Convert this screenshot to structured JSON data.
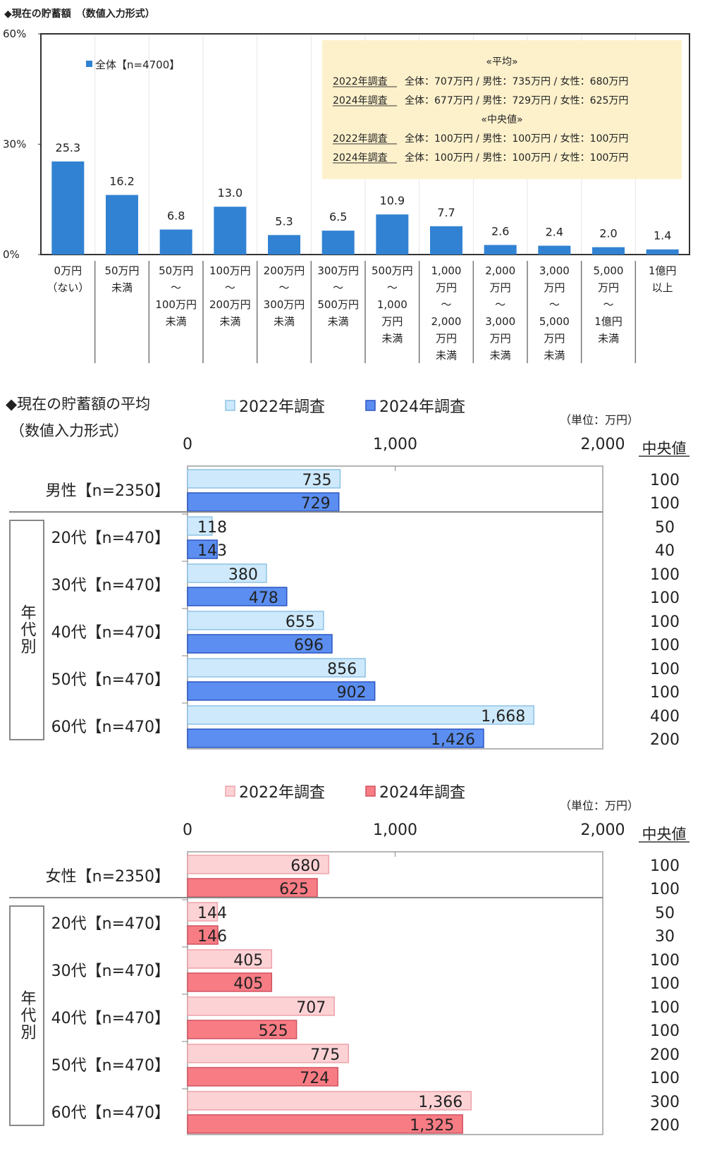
{
  "chart_data": [
    {
      "type": "bar",
      "title": "◆現在の貯蓄額　（数値入力形式）",
      "legend": "全体【n=4700】",
      "legend_position": "top-left",
      "yticks": [
        "60%",
        "30%",
        "0%"
      ],
      "ylim": [
        0,
        60
      ],
      "color": "#3182d2",
      "categories": [
        [
          "0万円",
          "（ない）"
        ],
        [
          "50万円",
          "未満"
        ],
        [
          "50万円",
          "～",
          "100万円",
          "未満"
        ],
        [
          "100万円",
          "～",
          "200万円",
          "未満"
        ],
        [
          "200万円",
          "～",
          "300万円",
          "未満"
        ],
        [
          "300万円",
          "～",
          "500万円",
          "未満"
        ],
        [
          "500万円",
          "～",
          "1,000",
          "万円",
          "未満"
        ],
        [
          "1,000",
          "万円",
          "～",
          "2,000",
          "万円",
          "未満"
        ],
        [
          "2,000",
          "万円",
          "～",
          "3,000",
          "万円",
          "未満"
        ],
        [
          "3,000",
          "万円",
          "～",
          "5,000",
          "万円",
          "未満"
        ],
        [
          "5,000",
          "万円",
          "～",
          "1億円",
          "未満"
        ],
        [
          "1億円",
          "以上"
        ]
      ],
      "values": [
        25.3,
        16.2,
        6.8,
        13.0,
        5.3,
        6.5,
        10.9,
        7.7,
        2.6,
        2.4,
        2.0,
        1.4
      ],
      "info_box": {
        "avg_heading": "«平均»",
        "avg_rows": [
          {
            "year": "2022年調査",
            "text": "全体：707万円 / 男性：735万円 / 女性：680万円"
          },
          {
            "year": "2024年調査",
            "text": "全体：677万円 / 男性：729万円 / 女性：625万円"
          }
        ],
        "median_heading": "«中央値»",
        "median_rows": [
          {
            "year": "2022年調査",
            "text": "全体：100万円 / 男性：100万円 / 女性：100万円"
          },
          {
            "year": "2024年調査",
            "text": "全体：100万円 / 男性：100万円 / 女性：100万円"
          }
        ]
      }
    },
    {
      "type": "bar",
      "orientation": "horizontal",
      "title_lines": [
        "◆現在の貯蓄額の平均",
        "（数値入力形式）"
      ],
      "unit": "（単位：万円）",
      "xticks": [
        "0",
        "1,000",
        "2,000"
      ],
      "xlim": [
        0,
        2000
      ],
      "median_header": "中央値",
      "group_label": "年代別",
      "series": [
        {
          "name": "2022年調査",
          "color": "#cde9fb",
          "border": "#8ec3e6"
        },
        {
          "name": "2024年調査",
          "color": "#5b8ef0",
          "border": "#2b55c2"
        }
      ],
      "rows": [
        {
          "label": "男性【n=2350】",
          "values": [
            735,
            729
          ],
          "labels": [
            "735",
            "729"
          ],
          "medians": [
            100,
            100
          ]
        },
        {
          "label": "20代【n=470】",
          "values": [
            118,
            143
          ],
          "labels": [
            "118",
            "143"
          ],
          "medians": [
            50,
            40
          ]
        },
        {
          "label": "30代【n=470】",
          "values": [
            380,
            478
          ],
          "labels": [
            "380",
            "478"
          ],
          "medians": [
            100,
            100
          ]
        },
        {
          "label": "40代【n=470】",
          "values": [
            655,
            696
          ],
          "labels": [
            "655",
            "696"
          ],
          "medians": [
            100,
            100
          ]
        },
        {
          "label": "50代【n=470】",
          "values": [
            856,
            902
          ],
          "labels": [
            "856",
            "902"
          ],
          "medians": [
            100,
            100
          ]
        },
        {
          "label": "60代【n=470】",
          "values": [
            1668,
            1426
          ],
          "labels": [
            "1,668",
            "1,426"
          ],
          "medians": [
            400,
            200
          ]
        }
      ]
    },
    {
      "type": "bar",
      "orientation": "horizontal",
      "unit": "（単位：万円）",
      "xticks": [
        "0",
        "1,000",
        "2,000"
      ],
      "xlim": [
        0,
        2000
      ],
      "median_header": "中央値",
      "group_label": "年代別",
      "series": [
        {
          "name": "2022年調査",
          "color": "#fcd2d5",
          "border": "#eea3aa"
        },
        {
          "name": "2024年調査",
          "color": "#f87c84",
          "border": "#cf5361"
        }
      ],
      "rows": [
        {
          "label": "女性【n=2350】",
          "values": [
            680,
            625
          ],
          "labels": [
            "680",
            "625"
          ],
          "medians": [
            100,
            100
          ]
        },
        {
          "label": "20代【n=470】",
          "values": [
            144,
            146
          ],
          "labels": [
            "144",
            "146"
          ],
          "medians": [
            50,
            30
          ]
        },
        {
          "label": "30代【n=470】",
          "values": [
            405,
            405
          ],
          "labels": [
            "405",
            "405"
          ],
          "medians": [
            100,
            100
          ]
        },
        {
          "label": "40代【n=470】",
          "values": [
            707,
            525
          ],
          "labels": [
            "707",
            "525"
          ],
          "medians": [
            100,
            100
          ]
        },
        {
          "label": "50代【n=470】",
          "values": [
            775,
            724
          ],
          "labels": [
            "775",
            "724"
          ],
          "medians": [
            200,
            100
          ]
        },
        {
          "label": "60代【n=470】",
          "values": [
            1366,
            1325
          ],
          "labels": [
            "1,366",
            "1,325"
          ],
          "medians": [
            300,
            200
          ]
        }
      ]
    }
  ]
}
